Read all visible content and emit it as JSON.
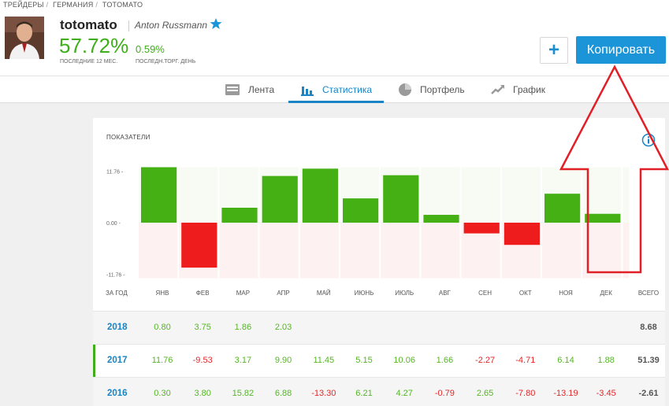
{
  "breadcrumb": [
    "ТРЕЙДЕРЫ",
    "ГЕРМАНИЯ",
    "TOTOMATO"
  ],
  "profile": {
    "username": "totomato",
    "full_name": "Anton Russmann",
    "gain_12m": "57.72%",
    "gain_12m_label": "ПОСЛЕДНИЕ 12 МЕС.",
    "gain_day": "0.59%",
    "gain_day_label": "ПОСЛЕДН.ТОРГ. ДЕНЬ"
  },
  "actions": {
    "plus_label": "+",
    "copy_label": "Копировать"
  },
  "tabs": [
    {
      "label": "Лента",
      "icon": "feed-icon"
    },
    {
      "label": "Статистика",
      "icon": "stats-icon",
      "active": true
    },
    {
      "label": "Портфель",
      "icon": "portfolio-icon"
    },
    {
      "label": "График",
      "icon": "chart-icon"
    }
  ],
  "panel": {
    "title": "ПОКАЗАТЕЛИ"
  },
  "chart_data": {
    "type": "bar",
    "categories": [
      "ЯНВ",
      "ФЕВ",
      "МАР",
      "АПР",
      "МАЙ",
      "ИЮНЬ",
      "ИЮЛЬ",
      "АВГ",
      "СЕН",
      "ОКТ",
      "НОЯ",
      "ДЕК"
    ],
    "values": [
      11.76,
      -9.53,
      3.17,
      9.9,
      11.45,
      5.15,
      10.06,
      1.66,
      -2.27,
      -4.71,
      6.14,
      1.88
    ],
    "y_ticks": [
      "11.76",
      "0.00",
      "-11.76"
    ],
    "ylim": [
      -11.76,
      11.76
    ],
    "colors": {
      "positive": "#45b013",
      "negative": "#ee1c1c"
    }
  },
  "table": {
    "first_header": "ЗА ГОД",
    "months": [
      "ЯНВ",
      "ФЕВ",
      "МАР",
      "АПР",
      "МАЙ",
      "ИЮНЬ",
      "ИЮЛЬ",
      "АВГ",
      "СЕН",
      "ОКТ",
      "НОЯ",
      "ДЕК"
    ],
    "total_header": "ВСЕГО",
    "rows": [
      {
        "year": "2018",
        "values": [
          "0.80",
          "3.75",
          "1.86",
          "2.03",
          "",
          "",
          "",
          "",
          "",
          "",
          "",
          ""
        ],
        "total": "8.68"
      },
      {
        "year": "2017",
        "values": [
          "11.76",
          "-9.53",
          "3.17",
          "9.90",
          "11.45",
          "5.15",
          "10.06",
          "1.66",
          "-2.27",
          "-4.71",
          "6.14",
          "1.88"
        ],
        "total": "51.39"
      },
      {
        "year": "2016",
        "values": [
          "0.30",
          "3.80",
          "15.82",
          "6.88",
          "-13.30",
          "6.21",
          "4.27",
          "-0.79",
          "2.65",
          "-7.80",
          "-13.19",
          "-3.45"
        ],
        "total": "-2.61"
      }
    ]
  },
  "annotation": {
    "color": "#e11f26"
  }
}
